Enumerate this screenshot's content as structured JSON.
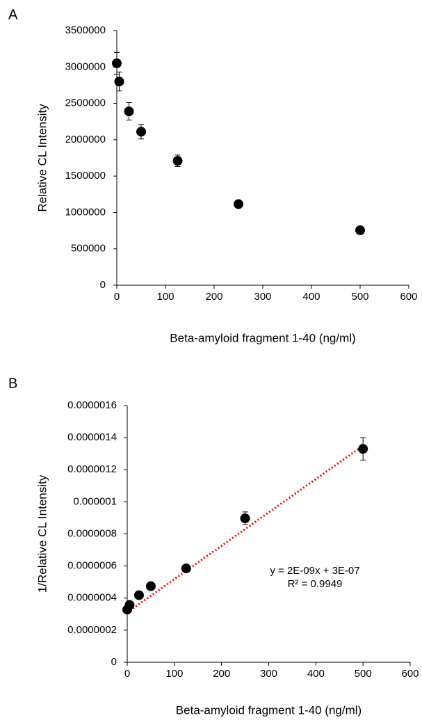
{
  "chart_data": [
    {
      "type": "scatter",
      "panel_label": "A",
      "y_label": "Relative CL Intensity",
      "x_label": "Beta-amyloid fragment 1-40 (ng/ml)",
      "x": [
        0,
        5,
        25,
        50,
        125,
        250,
        500
      ],
      "values": [
        3050000,
        2800000,
        2390000,
        2110000,
        1710000,
        1115000,
        755000
      ],
      "errors": [
        150000,
        130000,
        120000,
        100000,
        80000,
        30000,
        20000
      ],
      "color": "#000000",
      "xlim": [
        0,
        600
      ],
      "xticks": [
        0,
        100,
        200,
        300,
        400,
        500,
        600
      ],
      "ylim": [
        0,
        3500000
      ],
      "yticks": [
        0,
        500000,
        1000000,
        1500000,
        2000000,
        2500000,
        3000000,
        3500000
      ]
    },
    {
      "type": "scatter",
      "panel_label": "B",
      "y_label": "1/Relative CL Intensity",
      "x_label": "Beta-amyloid fragment 1-40 (ng/ml)",
      "x": [
        0,
        5,
        25,
        50,
        125,
        250,
        500
      ],
      "values": [
        3.28e-07,
        3.57e-07,
        4.18e-07,
        4.74e-07,
        5.85e-07,
        8.97e-07,
        1.33e-06
      ],
      "errors": [
        1.5e-08,
        1.5e-08,
        1.5e-08,
        2e-08,
        1e-08,
        4e-08,
        7e-08
      ],
      "color": "#000000",
      "trendline": {
        "x": [
          0,
          500
        ],
        "y": [
          3.1e-07,
          1.35e-06
        ],
        "color": "#ff0000"
      },
      "annotations": [
        "y = 2E-09x + 3E-07",
        "R² = 0.9949"
      ],
      "xlim": [
        0,
        600
      ],
      "xticks": [
        0,
        100,
        200,
        300,
        400,
        500,
        600
      ],
      "ylim": [
        0,
        1.6e-06
      ],
      "yticks": [
        0,
        {
          "value": 2e-07,
          "label": "0.0000002"
        },
        {
          "value": 4e-07,
          "label": "0.0000004"
        },
        {
          "value": 6e-07,
          "label": "0.0000006"
        },
        {
          "value": 8e-07,
          "label": "0.0000008"
        },
        1e-06,
        1.2e-06,
        1.4e-06,
        1.6e-06
      ]
    }
  ]
}
